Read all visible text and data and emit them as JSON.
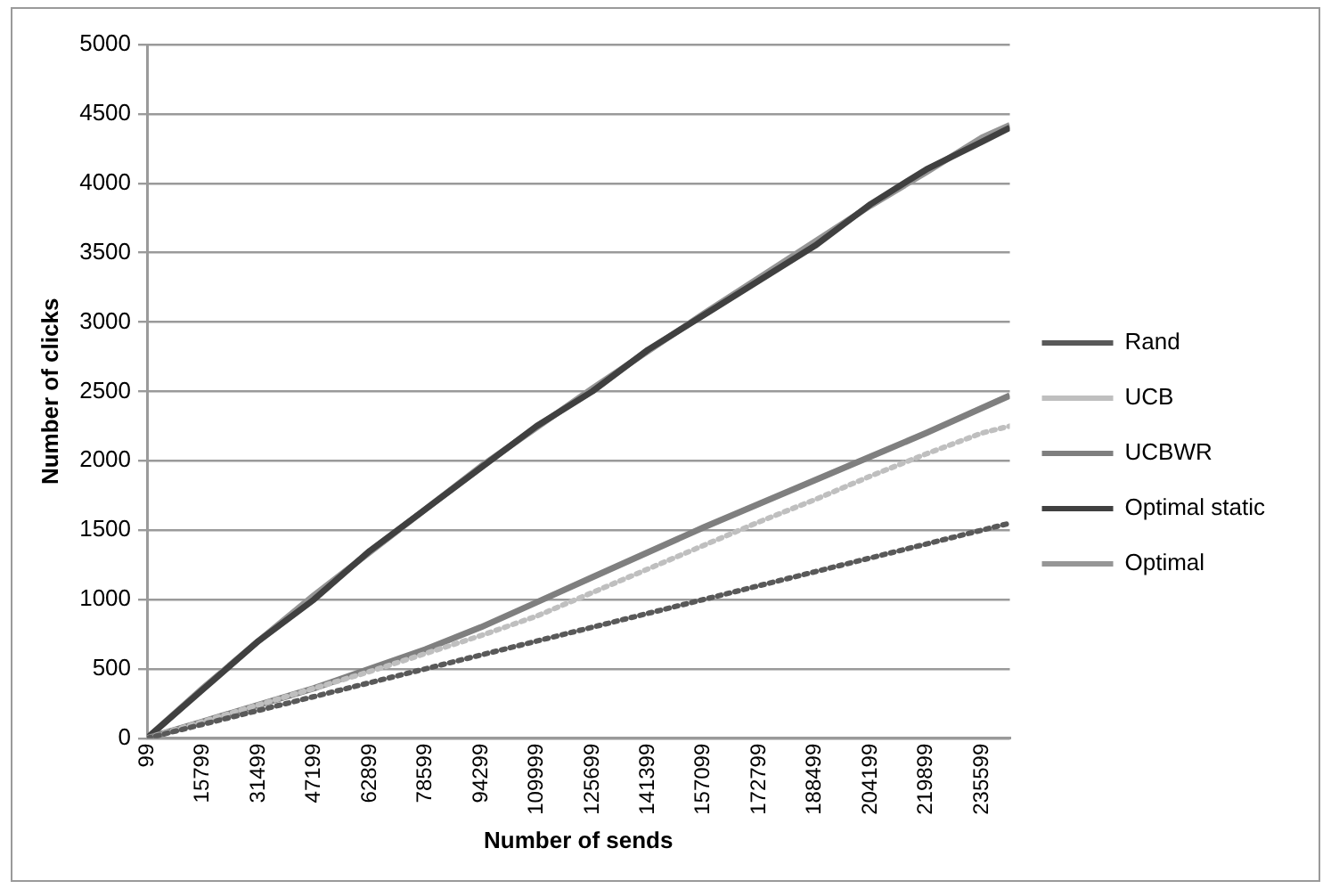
{
  "chart_data": {
    "type": "line",
    "xlabel": "Number of sends",
    "ylabel": "Number of clicks",
    "x": [
      99,
      15799,
      31499,
      47199,
      62899,
      78599,
      94299,
      109999,
      125699,
      141399,
      157099,
      172799,
      188499,
      204199,
      219899,
      235599,
      243449
    ],
    "xlim": [
      99,
      243449
    ],
    "xticks": [
      99,
      15799,
      31499,
      47199,
      62899,
      78599,
      94299,
      109999,
      125699,
      141399,
      157099,
      172799,
      188499,
      204199,
      219899,
      235599
    ],
    "ylim": [
      0,
      5000
    ],
    "yticks": [
      0,
      500,
      1000,
      1500,
      2000,
      2500,
      3000,
      3500,
      4000,
      4500,
      5000
    ],
    "grid": "y",
    "legend": "right",
    "marker": "none",
    "series": [
      {
        "name": "Rand",
        "color": "#595959",
        "line_style": "dotted",
        "values": [
          0,
          100,
          200,
          300,
          400,
          500,
          600,
          700,
          800,
          900,
          1000,
          1100,
          1200,
          1300,
          1400,
          1500,
          1550
        ]
      },
      {
        "name": "UCB",
        "color": "#bfbfbf",
        "line_style": "dotted",
        "values": [
          0,
          120,
          240,
          360,
          480,
          610,
          740,
          880,
          1050,
          1220,
          1390,
          1560,
          1720,
          1890,
          2050,
          2200,
          2250
        ]
      },
      {
        "name": "UCBWR",
        "color": "#7f7f7f",
        "line_style": "solid",
        "values": [
          0,
          120,
          240,
          360,
          500,
          640,
          800,
          980,
          1160,
          1340,
          1520,
          1690,
          1860,
          2030,
          2200,
          2380,
          2470
        ]
      },
      {
        "name": "Optimal static",
        "color": "#404040",
        "line_style": "solid",
        "values": [
          0,
          350,
          700,
          1000,
          1350,
          1650,
          1950,
          2250,
          2500,
          2800,
          3050,
          3300,
          3550,
          3850,
          4100,
          4300,
          4400
        ]
      },
      {
        "name": "Optimal",
        "color": "#969696",
        "line_style": "solid",
        "values": [
          0,
          360,
          700,
          1030,
          1340,
          1650,
          1960,
          2240,
          2520,
          2790,
          3060,
          3320,
          3580,
          3840,
          4080,
          4330,
          4420
        ]
      }
    ]
  }
}
